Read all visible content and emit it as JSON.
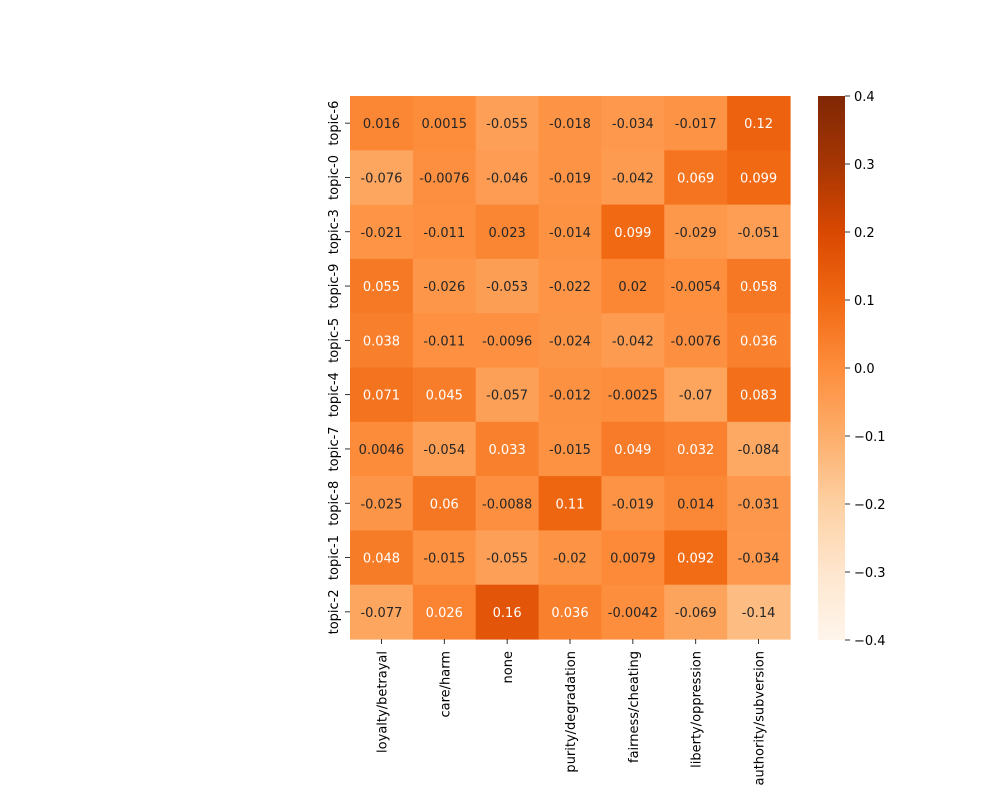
{
  "chart_data": {
    "type": "heatmap",
    "title": "",
    "xlabel": "",
    "ylabel": "",
    "rows": [
      "topic-6",
      "topic-0",
      "topic-3",
      "topic-9",
      "topic-5",
      "topic-4",
      "topic-7",
      "topic-8",
      "topic-1",
      "topic-2"
    ],
    "columns": [
      "loyalty/betrayal",
      "care/harm",
      "none",
      "purity/degradation",
      "fairness/cheating",
      "liberty/oppression",
      "authority/subversion"
    ],
    "values": [
      [
        0.016,
        0.0015,
        -0.055,
        -0.018,
        -0.034,
        -0.017,
        0.12
      ],
      [
        -0.076,
        -0.0076,
        -0.046,
        -0.019,
        -0.042,
        0.069,
        0.099
      ],
      [
        -0.021,
        -0.011,
        0.023,
        -0.014,
        0.099,
        -0.029,
        -0.051
      ],
      [
        0.055,
        -0.026,
        -0.053,
        -0.022,
        0.02,
        -0.0054,
        0.058
      ],
      [
        0.038,
        -0.011,
        -0.0096,
        -0.024,
        -0.042,
        -0.0076,
        0.036
      ],
      [
        0.071,
        0.045,
        -0.057,
        -0.012,
        -0.0025,
        -0.07,
        0.083
      ],
      [
        0.0046,
        -0.054,
        0.033,
        -0.015,
        0.049,
        0.032,
        -0.084
      ],
      [
        -0.025,
        0.06,
        -0.0088,
        0.11,
        -0.019,
        0.014,
        -0.031
      ],
      [
        0.048,
        -0.015,
        -0.055,
        -0.02,
        0.0079,
        0.092,
        -0.034
      ],
      [
        -0.077,
        0.026,
        0.16,
        0.036,
        -0.0042,
        -0.069,
        -0.14
      ]
    ],
    "labels": [
      [
        "0.016",
        "0.0015",
        "-0.055",
        "-0.018",
        "-0.034",
        "-0.017",
        "0.12"
      ],
      [
        "-0.076",
        "-0.0076",
        "-0.046",
        "-0.019",
        "-0.042",
        "0.069",
        "0.099"
      ],
      [
        "-0.021",
        "-0.011",
        "0.023",
        "-0.014",
        "0.099",
        "-0.029",
        "-0.051"
      ],
      [
        "0.055",
        "-0.026",
        "-0.053",
        "-0.022",
        "0.02",
        "-0.0054",
        "0.058"
      ],
      [
        "0.038",
        "-0.011",
        "-0.0096",
        "-0.024",
        "-0.042",
        "-0.0076",
        "0.036"
      ],
      [
        "0.071",
        "0.045",
        "-0.057",
        "-0.012",
        "-0.0025",
        "-0.07",
        "0.083"
      ],
      [
        "0.0046",
        "-0.054",
        "0.033",
        "-0.015",
        "0.049",
        "0.032",
        "-0.084"
      ],
      [
        "-0.025",
        "0.06",
        "-0.0088",
        "0.11",
        "-0.019",
        "0.014",
        "-0.031"
      ],
      [
        "0.048",
        "-0.015",
        "-0.055",
        "-0.02",
        "0.0079",
        "0.092",
        "-0.034"
      ],
      [
        "-0.077",
        "0.026",
        "0.16",
        "0.036",
        "-0.0042",
        "-0.069",
        "-0.14"
      ]
    ],
    "colorbar": {
      "vmin": -0.4,
      "vmax": 0.4,
      "colormap": "Oranges",
      "ticks": [
        0.4,
        0.3,
        0.2,
        0.1,
        0.0,
        -0.1,
        -0.2,
        -0.3,
        -0.4
      ],
      "tick_labels": [
        "0.4",
        "0.3",
        "0.2",
        "0.1",
        "0.0",
        "−0.1",
        "−0.2",
        "−0.3",
        "−0.4"
      ]
    },
    "annotation_colors": {
      "dark": "#262626",
      "light": "#ffffff"
    }
  }
}
